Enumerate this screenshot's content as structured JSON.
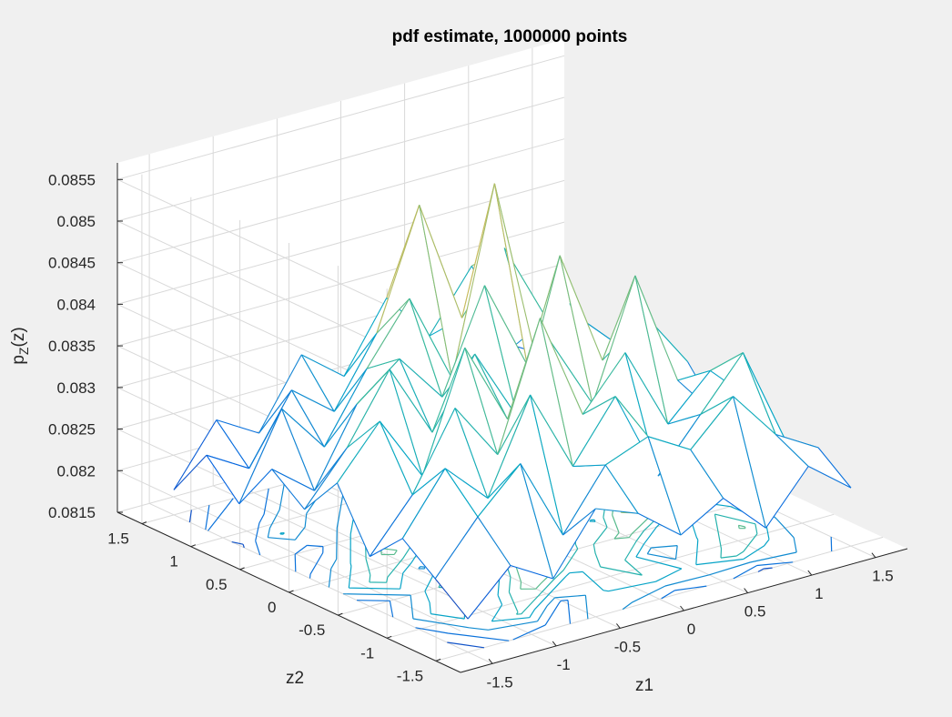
{
  "figure": {
    "background": "#f0f0f0",
    "axes_background": "#ffffff"
  },
  "chart_data": {
    "type": "surface-mesh-with-contour",
    "title": "pdf estimate, 1000000 points",
    "xlabel": "z1",
    "ylabel": "z2",
    "zlabel": "p_Z(z)",
    "zlabel_parts": {
      "base": "p",
      "sub": "Z",
      "rest": "(z)"
    },
    "xlim": [
      -1.75,
      1.75
    ],
    "ylim": [
      -1.75,
      1.75
    ],
    "zlim": [
      0.0815,
      0.0857
    ],
    "xticks": [
      -1.5,
      -1,
      -0.5,
      0,
      0.5,
      1,
      1.5
    ],
    "xtick_labels": [
      "-1.5",
      "-1",
      "-0.5",
      "0",
      "0.5",
      "1",
      "1.5"
    ],
    "yticks": [
      -1.5,
      -1,
      -0.5,
      0,
      0.5,
      1,
      1.5
    ],
    "ytick_labels": [
      "-1.5",
      "-1",
      "-0.5",
      "0",
      "0.5",
      "1",
      "1.5"
    ],
    "zticks": [
      0.0815,
      0.082,
      0.0825,
      0.083,
      0.0835,
      0.084,
      0.0845,
      0.085,
      0.0855
    ],
    "ztick_labels": [
      "0.0815",
      "0.082",
      "0.0825",
      "0.083",
      "0.0835",
      "0.084",
      "0.0845",
      "0.085",
      "0.0855"
    ],
    "grid": true,
    "view": {
      "azimuth": -37.5,
      "elevation": 30
    },
    "colormap": "parula",
    "colormap_stops": [
      "#352a87",
      "#0363e1",
      "#1485d4",
      "#06a7c6",
      "#38b99e",
      "#92bf73",
      "#d9ba56",
      "#fcce2e",
      "#f9fb0e"
    ],
    "x": [
      -1.5,
      -1.1667,
      -0.8333,
      -0.5,
      -0.1667,
      0.1667,
      0.5,
      0.8333,
      1.1667,
      1.5
    ],
    "y": [
      -1.5,
      -1.1667,
      -0.8333,
      -0.5,
      -0.1667,
      0.1667,
      0.5,
      0.8333,
      1.1667,
      1.5
    ],
    "z": [
      [
        0.0819,
        0.0824,
        0.0821,
        0.0828,
        0.0826,
        0.0822,
        0.0825,
        0.082,
        0.0826,
        0.0822
      ],
      [
        0.0822,
        0.0828,
        0.0833,
        0.0823,
        0.083,
        0.0832,
        0.0829,
        0.0834,
        0.0828,
        0.0825
      ],
      [
        0.0825,
        0.0832,
        0.0827,
        0.0838,
        0.0828,
        0.0835,
        0.0824,
        0.083,
        0.0836,
        0.0824
      ],
      [
        0.0821,
        0.0827,
        0.0836,
        0.0829,
        0.0844,
        0.0831,
        0.0837,
        0.0827,
        0.0832,
        0.0827
      ],
      [
        0.0828,
        0.0834,
        0.0826,
        0.084,
        0.083,
        0.0838,
        0.0829,
        0.0843,
        0.0829,
        0.0823
      ],
      [
        0.0823,
        0.0829,
        0.0837,
        0.0828,
        0.0836,
        0.0827,
        0.0845,
        0.0831,
        0.0835,
        0.0828
      ],
      [
        0.0826,
        0.0822,
        0.0831,
        0.0835,
        0.0829,
        0.0841,
        0.083,
        0.0836,
        0.0824,
        0.0822
      ],
      [
        0.082,
        0.083,
        0.0824,
        0.0832,
        0.0839,
        0.0828,
        0.085,
        0.0827,
        0.0831,
        0.0826
      ],
      [
        0.0824,
        0.0821,
        0.0829,
        0.0825,
        0.0833,
        0.0847,
        0.0832,
        0.0839,
        0.0829,
        0.0823
      ],
      [
        0.0818,
        0.0825,
        0.0822,
        0.083,
        0.0826,
        0.0834,
        0.0828,
        0.0835,
        0.0824,
        0.0821
      ]
    ]
  }
}
